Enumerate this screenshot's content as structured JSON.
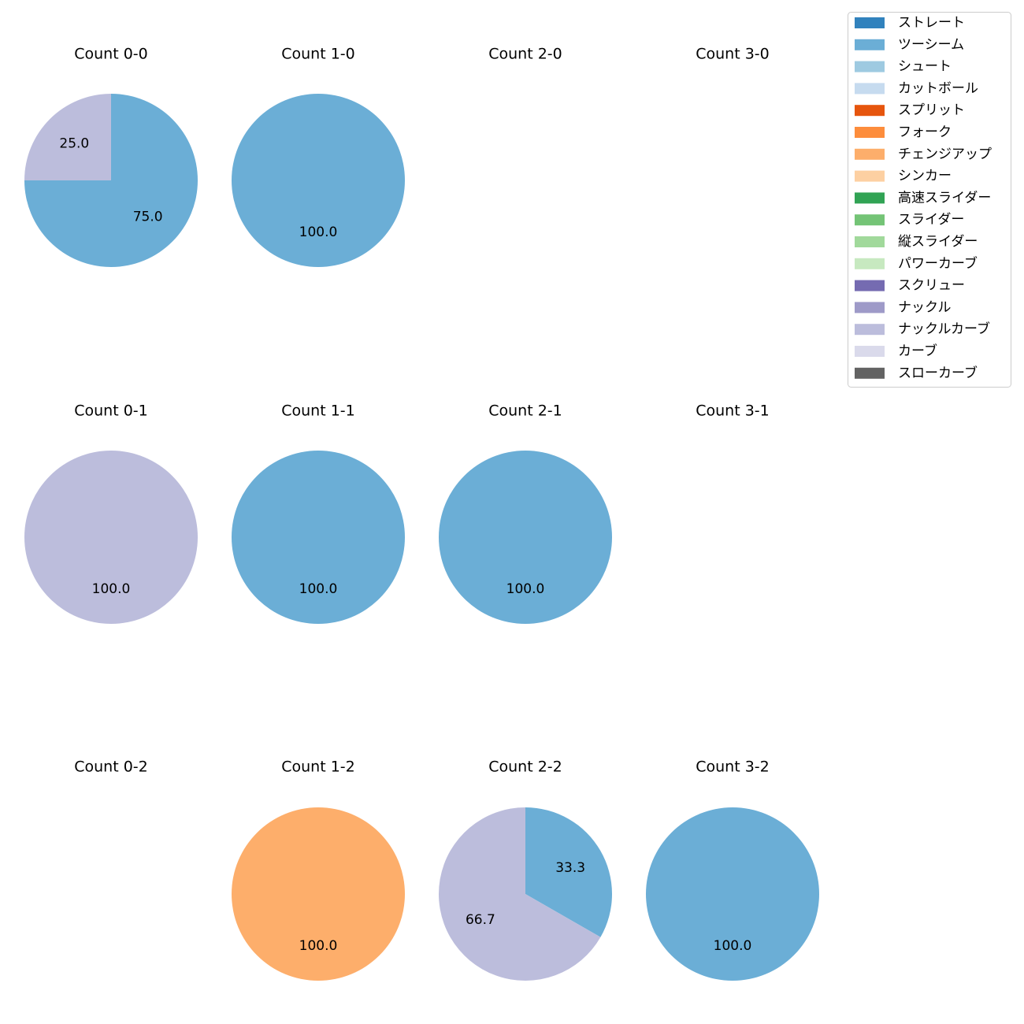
{
  "chart_data": {
    "type": "pie",
    "legend": {
      "placement": "top-right",
      "entries": [
        {
          "label": "ストレート",
          "color": "#3182bd"
        },
        {
          "label": "ツーシーム",
          "color": "#6baed6"
        },
        {
          "label": "シュート",
          "color": "#9ecae1"
        },
        {
          "label": "カットボール",
          "color": "#c6dbef"
        },
        {
          "label": "スプリット",
          "color": "#e6550d"
        },
        {
          "label": "フォーク",
          "color": "#fd8d3c"
        },
        {
          "label": "チェンジアップ",
          "color": "#fdae6b"
        },
        {
          "label": "シンカー",
          "color": "#fdd0a2"
        },
        {
          "label": "高速スライダー",
          "color": "#31a354"
        },
        {
          "label": "スライダー",
          "color": "#74c476"
        },
        {
          "label": "縦スライダー",
          "color": "#a1d99b"
        },
        {
          "label": "パワーカーブ",
          "color": "#c7e9c0"
        },
        {
          "label": "スクリュー",
          "color": "#756bb1"
        },
        {
          "label": "ナックル",
          "color": "#9e9ac8"
        },
        {
          "label": "ナックルカーブ",
          "color": "#bcbddc"
        },
        {
          "label": "カーブ",
          "color": "#dadaeb"
        },
        {
          "label": "スローカーブ",
          "color": "#636363"
        }
      ]
    },
    "panels": [
      {
        "title": "Count 0-0",
        "slices": [
          {
            "pitch": "ツーシーム",
            "value": 75.0,
            "label": "75.0"
          },
          {
            "pitch": "ナックルカーブ",
            "value": 25.0,
            "label": "25.0"
          }
        ]
      },
      {
        "title": "Count 1-0",
        "slices": [
          {
            "pitch": "ツーシーム",
            "value": 100.0,
            "label": "100.0"
          }
        ]
      },
      {
        "title": "Count 2-0",
        "slices": []
      },
      {
        "title": "Count 3-0",
        "slices": []
      },
      {
        "title": "Count 0-1",
        "slices": [
          {
            "pitch": "ナックルカーブ",
            "value": 100.0,
            "label": "100.0"
          }
        ]
      },
      {
        "title": "Count 1-1",
        "slices": [
          {
            "pitch": "ツーシーム",
            "value": 100.0,
            "label": "100.0"
          }
        ]
      },
      {
        "title": "Count 2-1",
        "slices": [
          {
            "pitch": "ツーシーム",
            "value": 100.0,
            "label": "100.0"
          }
        ]
      },
      {
        "title": "Count 3-1",
        "slices": []
      },
      {
        "title": "Count 0-2",
        "slices": []
      },
      {
        "title": "Count 1-2",
        "slices": [
          {
            "pitch": "チェンジアップ",
            "value": 100.0,
            "label": "100.0"
          }
        ]
      },
      {
        "title": "Count 2-2",
        "slices": [
          {
            "pitch": "ツーシーム",
            "value": 33.3,
            "label": "33.3"
          },
          {
            "pitch": "ナックルカーブ",
            "value": 66.7,
            "label": "66.7"
          }
        ]
      },
      {
        "title": "Count 3-2",
        "slices": [
          {
            "pitch": "ツーシーム",
            "value": 100.0,
            "label": "100.0"
          }
        ]
      }
    ]
  }
}
